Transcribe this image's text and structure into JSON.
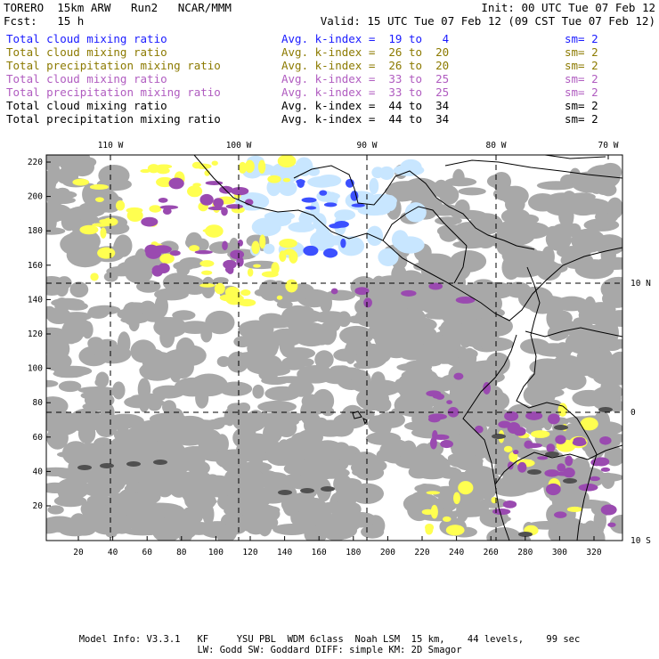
{
  "header": {
    "model": "TORERO",
    "resolution": "15km ARW",
    "run": "Run2",
    "org": "NCAR/MMM",
    "init": "Init: 00 UTC Tue 07 Feb 12",
    "fcst_label": "Fcst:",
    "fcst_value": "15 h",
    "valid": "Valid: 15 UTC Tue 07 Feb 12 (09 CST Tue 07 Feb 12)"
  },
  "fields": [
    {
      "name": "Total cloud mixing ratio",
      "kindex": "Avg. k-index =  19 to   4",
      "sm": "sm= 2",
      "color": "#1a1aff"
    },
    {
      "name": "Total cloud mixing ratio",
      "kindex": "Avg. k-index =  26 to  20",
      "sm": "sm= 2",
      "color": "#8c7a00"
    },
    {
      "name": "Total precipitation mixing ratio",
      "kindex": "Avg. k-index =  26 to  20",
      "sm": "sm= 2",
      "color": "#8c7a00"
    },
    {
      "name": "Total cloud mixing ratio",
      "kindex": "Avg. k-index =  33 to  25",
      "sm": "sm= 2",
      "color": "#b05cc0"
    },
    {
      "name": "Total precipitation mixing ratio",
      "kindex": "Avg. k-index =  33 to  25",
      "sm": "sm= 2",
      "color": "#b05cc0"
    },
    {
      "name": "Total cloud mixing ratio",
      "kindex": "Avg. k-index =  44 to  34",
      "sm": "sm= 2",
      "color": "#000000"
    },
    {
      "name": "Total precipitation mixing ratio",
      "kindex": "Avg. k-index =  44 to  34",
      "sm": "sm= 2",
      "color": "#000000"
    }
  ],
  "map": {
    "lon_labels": [
      "110 W",
      "100 W",
      "90 W",
      "80 W",
      "70 W"
    ],
    "lat_labels": [
      "10 N",
      "0",
      "10 S"
    ],
    "y_ticks": [
      "220",
      "200",
      "180",
      "160",
      "140",
      "120",
      "100",
      "80",
      "60",
      "40",
      "20"
    ],
    "x_ticks": [
      "20",
      "40",
      "60",
      "80",
      "100",
      "120",
      "140",
      "160",
      "180",
      "200",
      "220",
      "240",
      "260",
      "280",
      "300",
      "320"
    ],
    "colors": {
      "gray": "#a8a8a8",
      "dark_gray": "#505050",
      "yellow": "#ffff50",
      "purple": "#9a4ab0",
      "light_blue": "#c8e6ff",
      "blue": "#3c50ff",
      "coast": "#000000"
    }
  },
  "footer": {
    "line1": "Model Info: V3.3.1   KF     YSU PBL  WDM 6class  Noah LSM  15 km,    44 levels,    99 sec",
    "line2": "LW: Godd SW: Goddard DIFF: simple KM: 2D Smagor"
  }
}
